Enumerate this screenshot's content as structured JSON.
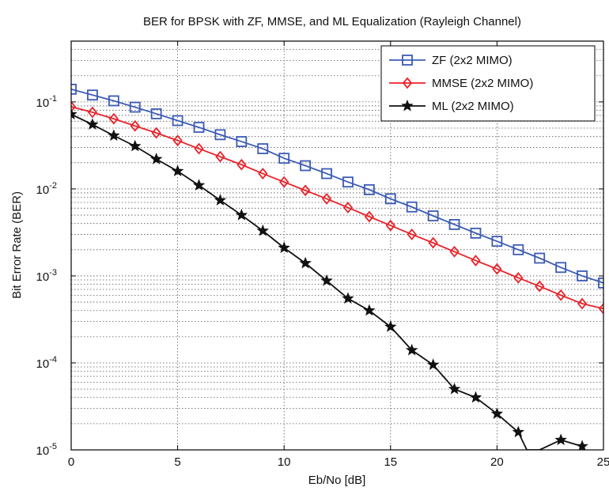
{
  "chart_data": {
    "type": "line",
    "title": "BER for BPSK  with ZF, MMSE, and ML Equalization (Rayleigh Channel)",
    "xlabel": "Eb/No [dB]",
    "ylabel": "Bit Error Rate (BER)",
    "xlim": [
      0,
      25
    ],
    "ylim": [
      1e-05,
      0.5
    ],
    "y_scale": "log",
    "grid": "on (dotted, major and minor)",
    "legend_position": "top-right",
    "x_ticks": [
      0,
      5,
      10,
      15,
      20,
      25
    ],
    "y_ticks": [
      {
        "value": 0.1,
        "base": "10",
        "exp": "-1"
      },
      {
        "value": 0.01,
        "base": "10",
        "exp": "-2"
      },
      {
        "value": 0.001,
        "base": "10",
        "exp": "-3"
      },
      {
        "value": 0.0001,
        "base": "10",
        "exp": "-4"
      },
      {
        "value": 1e-05,
        "base": "10",
        "exp": "-5"
      }
    ],
    "series": [
      {
        "name": "ZF (2x2 MIMO)",
        "color": "#3b5bb5",
        "marker": "square",
        "x": [
          0,
          1,
          2,
          3,
          4,
          5,
          6,
          7,
          8,
          9,
          10,
          11,
          12,
          13,
          14,
          15,
          16,
          17,
          18,
          19,
          20,
          21,
          22,
          23,
          24,
          25
        ],
        "y": [
          0.14,
          0.12,
          0.103,
          0.087,
          0.073,
          0.061,
          0.051,
          0.042,
          0.035,
          0.029,
          0.0225,
          0.0185,
          0.015,
          0.012,
          0.0098,
          0.0077,
          0.0062,
          0.0049,
          0.0039,
          0.0031,
          0.0025,
          0.002,
          0.0016,
          0.00125,
          0.001,
          0.00083
        ]
      },
      {
        "name": "MMSE (2x2 MIMO)",
        "color": "#e8232a",
        "marker": "diamond",
        "x": [
          0,
          1,
          2,
          3,
          4,
          5,
          6,
          7,
          8,
          9,
          10,
          11,
          12,
          13,
          14,
          15,
          16,
          17,
          18,
          19,
          20,
          21,
          22,
          23,
          24,
          25
        ],
        "y": [
          0.088,
          0.076,
          0.064,
          0.053,
          0.044,
          0.036,
          0.029,
          0.0235,
          0.019,
          0.015,
          0.012,
          0.0096,
          0.0077,
          0.0061,
          0.0048,
          0.0038,
          0.003,
          0.0024,
          0.0019,
          0.0015,
          0.0012,
          0.00095,
          0.00076,
          0.0006,
          0.00048,
          0.00042
        ]
      },
      {
        "name": "ML (2x2 MIMO)",
        "color": "#111111",
        "marker": "star",
        "x": [
          0,
          1,
          2,
          3,
          4,
          5,
          6,
          7,
          8,
          9,
          10,
          11,
          12,
          13,
          14,
          15,
          16,
          17,
          18,
          19,
          20,
          21,
          21.4,
          22,
          23,
          24
        ],
        "y": [
          0.072,
          0.055,
          0.041,
          0.031,
          0.022,
          0.016,
          0.011,
          0.0074,
          0.005,
          0.0033,
          0.0021,
          0.0014,
          0.00088,
          0.00055,
          0.0004,
          0.00026,
          0.00014,
          9.5e-05,
          5e-05,
          4e-05,
          2.6e-05,
          1.6e-05,
          1e-05,
          1e-05,
          1.3e-05,
          1.1e-05
        ]
      }
    ]
  }
}
